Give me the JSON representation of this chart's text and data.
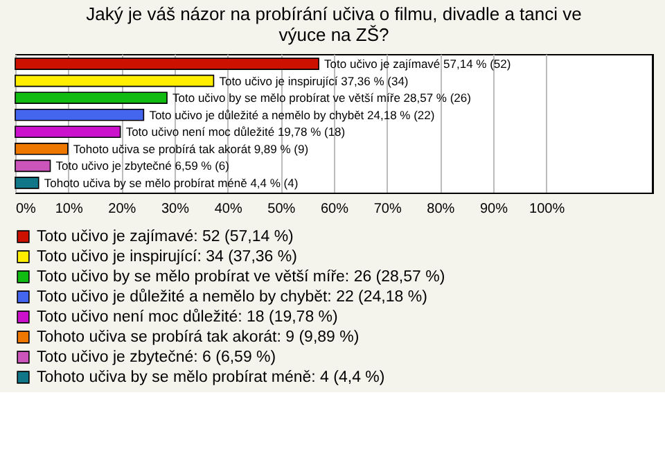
{
  "chart_data": {
    "type": "bar",
    "orientation": "horizontal",
    "title": "Jaký je váš názor na probírání učiva o filmu, divadle a tanci ve výuce na ZŠ?",
    "categories": [
      null,
      null,
      null,
      null,
      null,
      null,
      null,
      null
    ],
    "series": [
      {
        "name": "Toto učivo je zajímavé: 52 (57,14 %)",
        "color": "#cc1100",
        "values": [
          57.14,
          null,
          null,
          null,
          null,
          null,
          null,
          null
        ],
        "value_labels": [
          "Toto učivo je zajímavé 57,14 % (52)",
          null,
          null,
          null,
          null,
          null,
          null,
          null
        ]
      },
      {
        "name": "Toto učivo je inspirující: 34 (37,36 %)",
        "color": "#ffee00",
        "values": [
          null,
          37.36,
          null,
          null,
          null,
          null,
          null,
          null
        ],
        "value_labels": [
          null,
          "Toto učivo je inspirující 37,36 % (34)",
          null,
          null,
          null,
          null,
          null,
          null
        ]
      },
      {
        "name": "Toto učivo by se mělo probírat ve větší míře: 26 (28,57 %)",
        "color": "#11bb11",
        "values": [
          null,
          null,
          28.57,
          null,
          null,
          null,
          null,
          null
        ],
        "value_labels": [
          null,
          null,
          "Toto učivo by se mělo probírat ve větší míře 28,57 % (26)",
          null,
          null,
          null,
          null,
          null
        ]
      },
      {
        "name": "Toto učivo je důležité a nemělo by chybět: 22 (24,18 %)",
        "color": "#4466ee",
        "values": [
          null,
          null,
          null,
          24.18,
          null,
          null,
          null,
          null
        ],
        "value_labels": [
          null,
          null,
          null,
          "Toto učivo je důležité a nemělo by chybět 24,18 % (22)",
          null,
          null,
          null,
          null
        ]
      },
      {
        "name": "Toto učivo není moc důležité: 18 (19,78 %)",
        "color": "#cc11cc",
        "values": [
          null,
          null,
          null,
          null,
          19.78,
          null,
          null,
          null
        ],
        "value_labels": [
          null,
          null,
          null,
          null,
          "Toto učivo není moc důležité 19,78 % (18)",
          null,
          null,
          null
        ]
      },
      {
        "name": "Tohoto učiva se probírá tak akorát: 9 (9,89 %)",
        "color": "#ee7700",
        "values": [
          null,
          null,
          null,
          null,
          null,
          9.89,
          null,
          null
        ],
        "value_labels": [
          null,
          null,
          null,
          null,
          null,
          "Tohoto učiva se probírá tak akorát 9,89 % (9)",
          null,
          null
        ]
      },
      {
        "name": "Toto učivo je zbytečné: 6 (6,59 %)",
        "color": "#cc55bb",
        "values": [
          null,
          null,
          null,
          null,
          null,
          null,
          6.59,
          null
        ],
        "value_labels": [
          null,
          null,
          null,
          null,
          null,
          null,
          "Toto učivo je zbytečné 6,59 % (6)",
          null
        ]
      },
      {
        "name": "Tohoto učiva by se mělo probírat méně: 4 (4,4 %)",
        "color": "#117788",
        "values": [
          null,
          null,
          null,
          null,
          null,
          null,
          null,
          4.4
        ],
        "value_labels": [
          null,
          null,
          null,
          null,
          null,
          null,
          null,
          "Tohoto učiva by se mělo probírat méně 4,4 % (4)"
        ]
      }
    ],
    "xlim": [
      0,
      120
    ],
    "xticks": [
      {
        "value": 0,
        "label": "0%"
      },
      {
        "value": 10,
        "label": "10%"
      },
      {
        "value": 20,
        "label": "20%"
      },
      {
        "value": 30,
        "label": "30%"
      },
      {
        "value": 40,
        "label": "40%"
      },
      {
        "value": 50,
        "label": "50%"
      },
      {
        "value": 60,
        "label": "60%"
      },
      {
        "value": 70,
        "label": "70%"
      },
      {
        "value": 80,
        "label": "80%"
      },
      {
        "value": 90,
        "label": "90%"
      },
      {
        "value": 100,
        "label": "100%"
      }
    ],
    "grid": "x",
    "legend": "bottom",
    "tick_labels": "x"
  }
}
